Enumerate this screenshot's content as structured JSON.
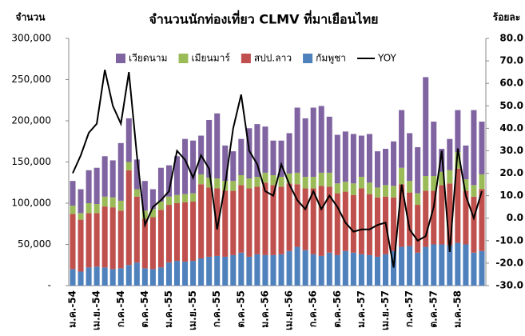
{
  "chart_data": {
    "type": "bar",
    "title": "จำนวนนักท่องเที่ยว CLMV ที่มาเยือนไทย",
    "y_label": "จำนวน",
    "y2_label": "ร้อยละ",
    "categories": [
      "ม.ค.-54",
      null,
      null,
      "เม.ย.-54",
      null,
      null,
      "ก.ค.-54",
      null,
      null,
      "ต.ค.-54",
      null,
      null,
      "ม.ค.-55",
      null,
      null,
      "เม.ย.-55",
      null,
      null,
      "ก.ค.-55",
      null,
      null,
      "ต.ค.-55",
      null,
      null,
      "ม.ค.-56",
      null,
      null,
      "เม.ย.-56",
      null,
      null,
      "ก.ค.-56",
      null,
      null,
      "ต.ค.-56",
      null,
      null,
      "ม.ค.-57",
      null,
      null,
      "เม.ย.-57",
      null,
      null,
      "ก.ค.-57",
      null,
      null,
      "ต.ค.-57",
      null,
      null,
      "ม.ค.-58",
      null,
      null,
      null
    ],
    "series": [
      {
        "name": "เวียดนาม",
        "color": "#8064a2",
        "values": [
          30000,
          29000,
          40000,
          44000,
          49000,
          45000,
          70000,
          53000,
          36000,
          36000,
          24000,
          41000,
          38000,
          47000,
          67000,
          64000,
          47000,
          70000,
          79000,
          43000,
          36000,
          44000,
          61000,
          64000,
          56000,
          42000,
          44000,
          49000,
          79000,
          71000,
          84000,
          81000,
          68000,
          59000,
          61000,
          60000,
          50000,
          59000,
          44000,
          44000,
          54000,
          70000,
          58000,
          56000,
          120000,
          66000,
          28000,
          38000,
          51000,
          41000,
          91000,
          64000
        ]
      },
      {
        "name": "เมียนมาร์",
        "color": "#9bbb59",
        "values": [
          10000,
          8000,
          12000,
          11000,
          12000,
          12000,
          12000,
          10000,
          9000,
          10000,
          10000,
          10000,
          10000,
          10000,
          10000,
          10000,
          12000,
          12000,
          12000,
          12000,
          12000,
          12000,
          12000,
          12000,
          12000,
          12000,
          12000,
          12000,
          14000,
          14000,
          14000,
          16000,
          17000,
          12000,
          12000,
          14000,
          14000,
          14000,
          12000,
          14000,
          14000,
          20000,
          14000,
          14000,
          18000,
          18000,
          16000,
          16000,
          20000,
          14000,
          14000,
          18000
        ]
      },
      {
        "name": "สปป.ลาว",
        "color": "#c0504d",
        "values": [
          67000,
          63000,
          66000,
          65000,
          74000,
          75000,
          70000,
          115000,
          80000,
          60000,
          63000,
          70000,
          70000,
          70000,
          72000,
          72000,
          90000,
          84000,
          82000,
          80000,
          78000,
          82000,
          83000,
          82000,
          88000,
          85000,
          82000,
          82000,
          76000,
          75000,
          80000,
          85000,
          80000,
          75000,
          72000,
          70000,
          80000,
          74000,
          72000,
          70000,
          65000,
          76000,
          65000,
          58000,
          68000,
          65000,
          72000,
          75000,
          90000,
          65000,
          68000,
          75000
        ]
      },
      {
        "name": "กัมพูชา",
        "color": "#4f81bd",
        "values": [
          20000,
          17000,
          22000,
          23000,
          22000,
          20000,
          21000,
          25000,
          28000,
          21000,
          20000,
          22000,
          28000,
          30000,
          29000,
          30000,
          33000,
          35000,
          36000,
          35000,
          37000,
          40000,
          35000,
          38000,
          37000,
          37000,
          38000,
          42000,
          47000,
          43000,
          38000,
          36000,
          40000,
          37000,
          42000,
          40000,
          38000,
          37000,
          35000,
          38000,
          42000,
          47000,
          48000,
          40000,
          47000,
          50000,
          50000,
          49000,
          52000,
          50000,
          40000,
          42000
        ]
      },
      {
        "name": "YOY",
        "color": "#000000",
        "axis": "y2",
        "type": "line",
        "values": [
          20,
          28,
          38,
          42,
          66,
          50,
          42,
          65,
          28,
          -3,
          5,
          8,
          12,
          30,
          26,
          18,
          28,
          22,
          -5,
          15,
          40,
          55,
          30,
          24,
          12,
          10,
          24,
          15,
          8,
          4,
          12,
          4,
          10,
          5,
          -2,
          -6,
          -5,
          -5,
          -3,
          -2,
          -22,
          15,
          -5,
          -10,
          -8,
          5,
          30,
          -15,
          31,
          10,
          0,
          12
        ]
      }
    ],
    "stacked": true,
    "ylim": [
      0,
      300000
    ],
    "yticks": [
      {
        "value": 0,
        "label": "-"
      },
      {
        "value": 50000,
        "label": "50,000"
      },
      {
        "value": 100000,
        "label": "100,000"
      },
      {
        "value": 150000,
        "label": "150,000"
      },
      {
        "value": 200000,
        "label": "200,000"
      },
      {
        "value": 250000,
        "label": "250,000"
      },
      {
        "value": 300000,
        "label": "300,000"
      }
    ],
    "y2lim": [
      -30,
      80
    ],
    "y2ticks": [
      {
        "value": -30,
        "label": "-30.0"
      },
      {
        "value": -20,
        "label": "-20.0"
      },
      {
        "value": -10,
        "label": "-10.0"
      },
      {
        "value": 0,
        "label": "0.0"
      },
      {
        "value": 10,
        "label": "10.0"
      },
      {
        "value": 20,
        "label": "20.0"
      },
      {
        "value": 30,
        "label": "30.0"
      },
      {
        "value": 40,
        "label": "40.0"
      },
      {
        "value": 50,
        "label": "50.0"
      },
      {
        "value": 60,
        "label": "60.0"
      },
      {
        "value": 70,
        "label": "70.0"
      },
      {
        "value": 80,
        "label": "80.0"
      }
    ],
    "grid": false,
    "legend": "top"
  }
}
